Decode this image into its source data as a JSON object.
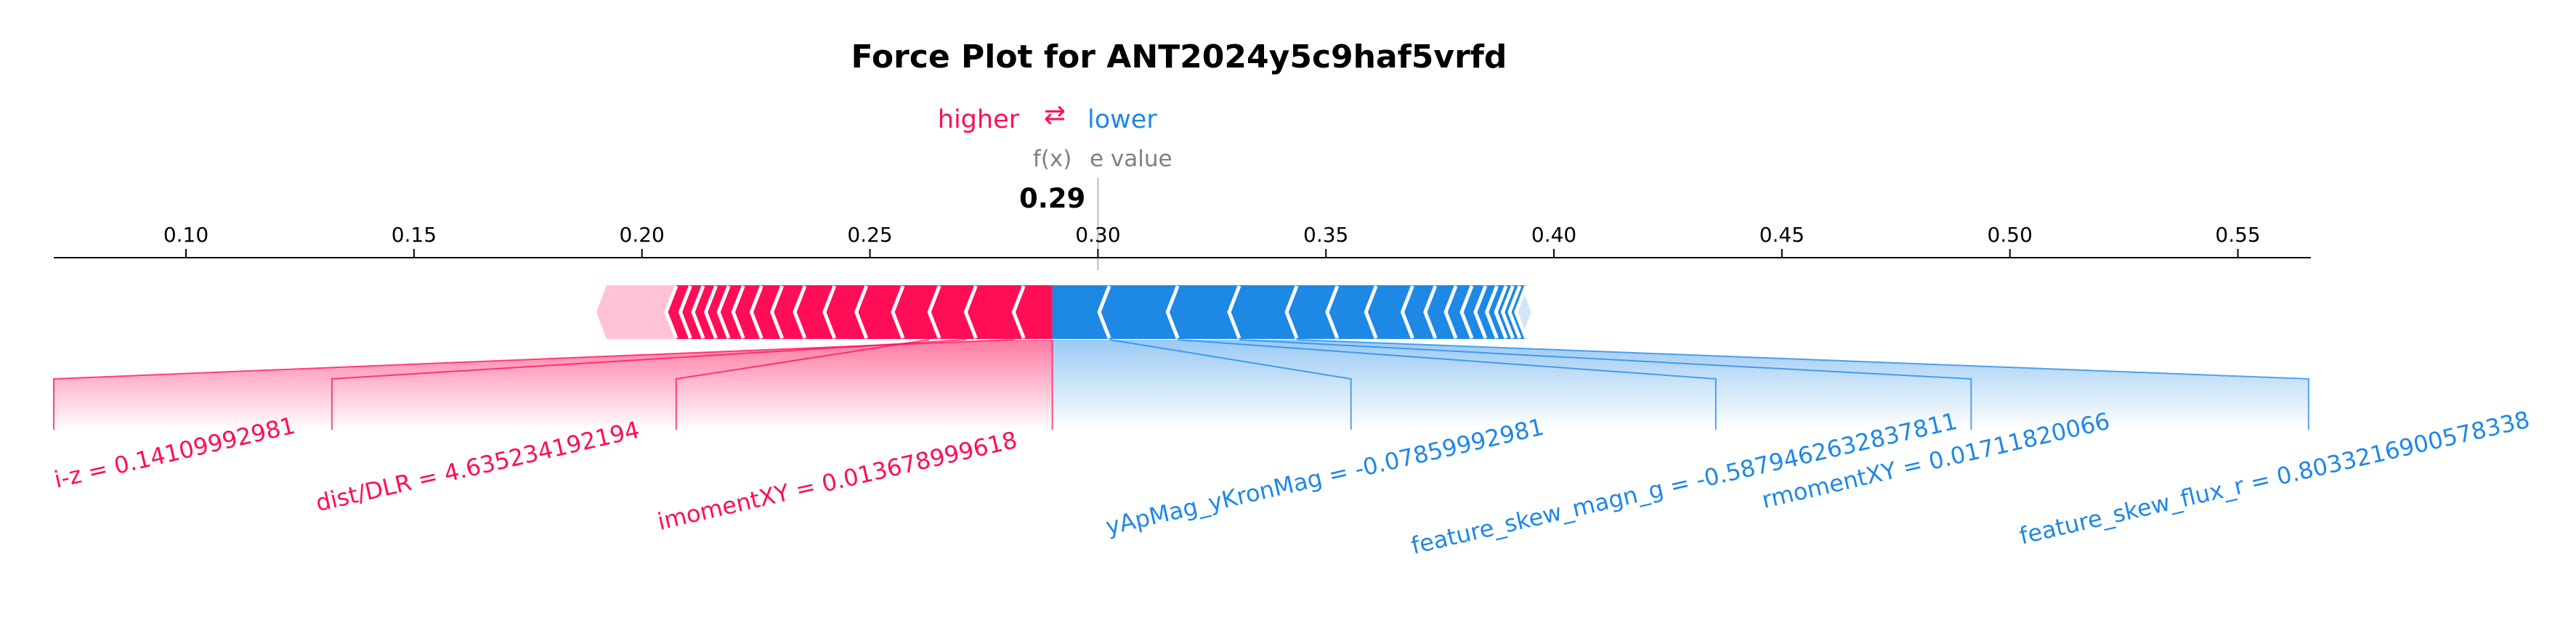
{
  "chart_data": {
    "type": "force",
    "title": "Force Plot for ANT2024y5c9haf5vrfd",
    "legend": {
      "higher": "higher",
      "arrow": "⇄",
      "lower": "lower"
    },
    "fx_label": "f(x)",
    "base_label": "base value",
    "output_value": 0.29,
    "output_label": "0.29",
    "base_value": 0.3,
    "xlim": [
      0.071,
      0.566
    ],
    "ticks": [
      0.1,
      0.15,
      0.2,
      0.25,
      0.3,
      0.35,
      0.4,
      0.45,
      0.5,
      0.55
    ],
    "tick_labels": [
      "0.10",
      "0.15",
      "0.20",
      "0.25",
      "0.30",
      "0.35",
      "0.40",
      "0.45",
      "0.50",
      "0.55"
    ],
    "push_higher_range": [
      0.19,
      0.29
    ],
    "push_lower_range": [
      0.29,
      0.395
    ],
    "higher_boundaries": [
      0.2053,
      0.2084,
      0.2112,
      0.214,
      0.2168,
      0.22,
      0.224,
      0.2285,
      0.2335,
      0.24,
      0.247,
      0.255,
      0.263,
      0.271,
      0.2815,
      0.29
    ],
    "lower_boundaries": [
      0.29,
      0.3025,
      0.3175,
      0.331,
      0.3436,
      0.3525,
      0.361,
      0.369,
      0.374,
      0.3785,
      0.382,
      0.385,
      0.3875,
      0.3895,
      0.391,
      0.3925,
      0.3939
    ],
    "colors": {
      "higher": "#ff0d57",
      "lower": "#1e88e5",
      "higher_light": "#ffc3d5",
      "lower_light": "#d1e6fa",
      "title": "#000000",
      "muted": "#808080"
    },
    "higher_features": [
      {
        "label": "i-z = 0.14109992981",
        "anchor": 0.2815,
        "label_x": 0.071
      },
      {
        "label": "dist/DLR = 4.635234192194",
        "anchor": 0.271,
        "label_x": 0.132
      },
      {
        "label": "imomentXY = 0.013678999618",
        "anchor": 0.263,
        "label_x": 0.2075
      }
    ],
    "lower_features": [
      {
        "label": "yApMag_yKronMag = -0.07859992981",
        "anchor": 0.3025,
        "label_x": 0.3555
      },
      {
        "label": "feature_skew_magn_g = -0.5879462632837811",
        "anchor": 0.3175,
        "label_x": 0.4355
      },
      {
        "label": "rmomentXY = 0.01711820066",
        "anchor": 0.331,
        "label_x": 0.4915
      },
      {
        "label": "feature_skew_flux_r = 0.8033216900578338",
        "anchor": 0.3436,
        "label_x": 0.5655
      }
    ]
  }
}
